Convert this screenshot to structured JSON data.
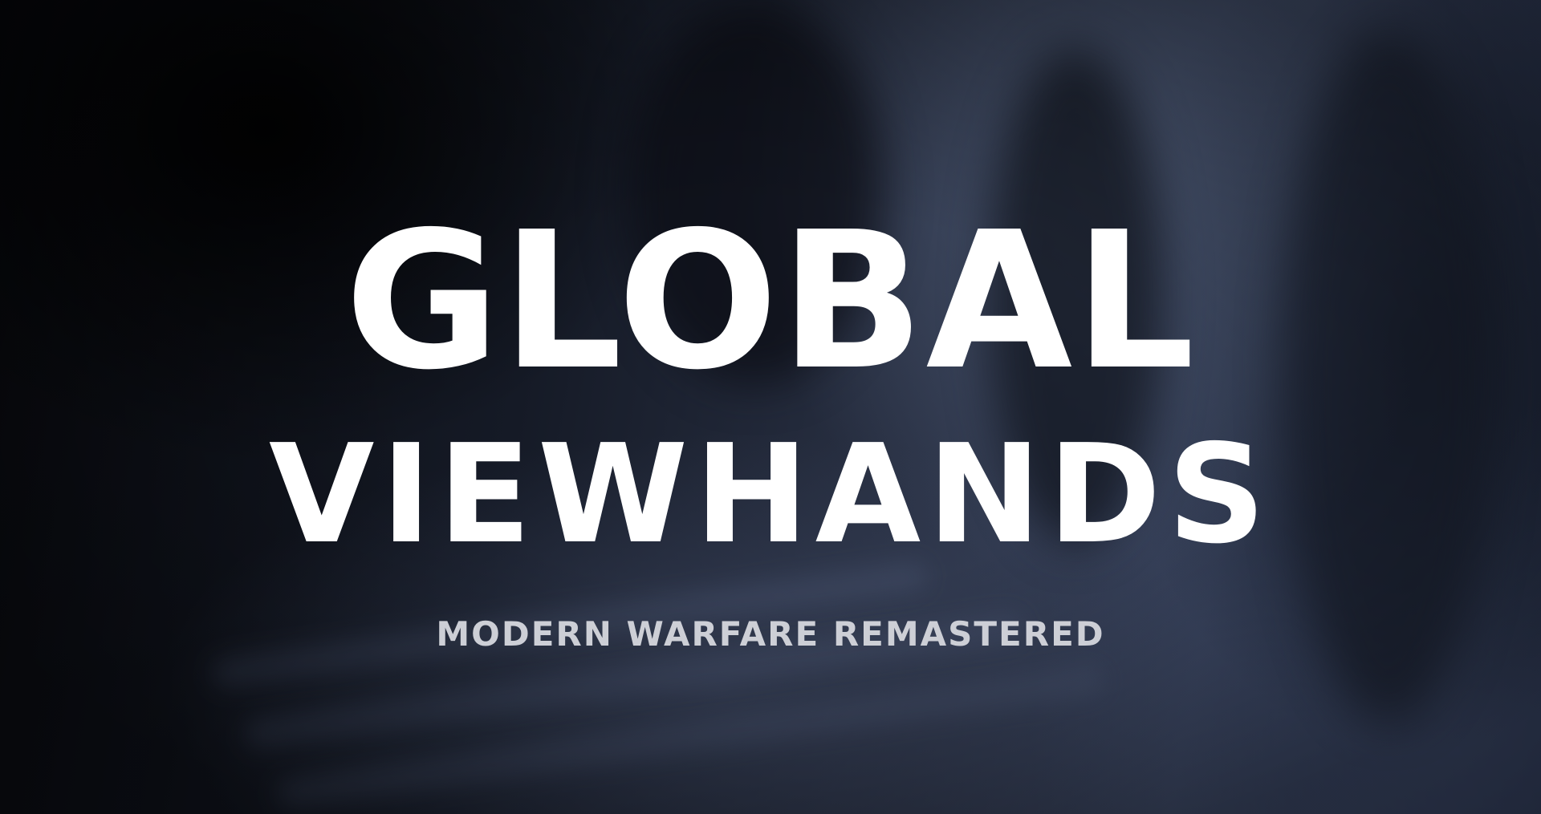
{
  "title": {
    "line1": "GLOBAL",
    "line2": "VIEWHANDS"
  },
  "subtitle": "MODERN WARFARE REMASTERED",
  "colors": {
    "title_text": "#ffffff",
    "subtitle_text": "#cdcfd6",
    "background_dark": "#07080c",
    "background_blue": "#3a4560"
  }
}
